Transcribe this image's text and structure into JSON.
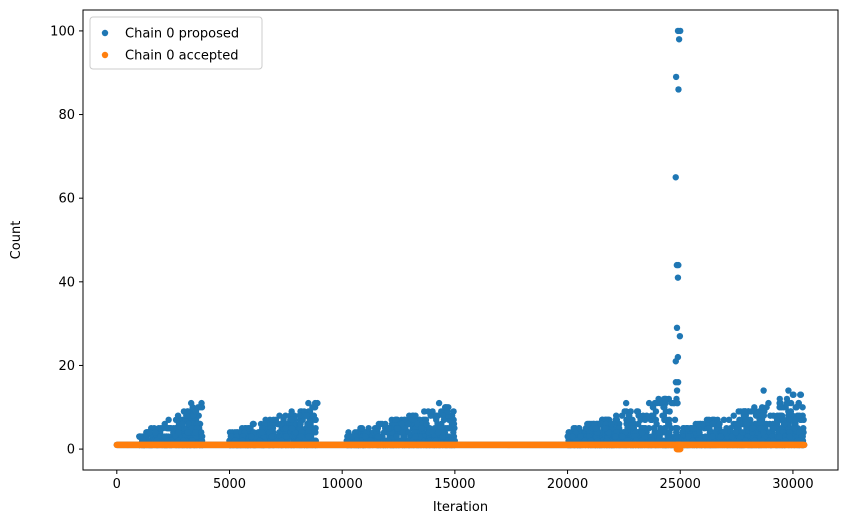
{
  "chart_data": {
    "type": "scatter",
    "title": "",
    "xlabel": "Iteration",
    "ylabel": "Count",
    "xlim": [
      -1500,
      32000
    ],
    "ylim": [
      -5,
      105
    ],
    "x_ticks": [
      0,
      5000,
      10000,
      15000,
      20000,
      25000,
      30000
    ],
    "y_ticks": [
      0,
      20,
      40,
      60,
      80,
      100
    ],
    "grid": false,
    "legend_placement": "top-left",
    "series": [
      {
        "name": "Chain 0 proposed",
        "color": "#1f77b4",
        "segments": [
          {
            "x_start": 0,
            "x_end": 1000,
            "y_min": 1,
            "y_max": 1
          },
          {
            "x_start": 1000,
            "x_end": 3800,
            "y_min": 1,
            "y_max": 11
          },
          {
            "x_start": 3800,
            "x_end": 5000,
            "y_min": 1,
            "y_max": 1
          },
          {
            "x_start": 5000,
            "x_end": 8900,
            "y_min": 1,
            "y_max": 11
          },
          {
            "x_start": 8900,
            "x_end": 10200,
            "y_min": 1,
            "y_max": 1
          },
          {
            "x_start": 10200,
            "x_end": 15000,
            "y_min": 1,
            "y_max": 11
          },
          {
            "x_start": 15000,
            "x_end": 20000,
            "y_min": 1,
            "y_max": 1
          },
          {
            "x_start": 20000,
            "x_end": 24800,
            "y_min": 1,
            "y_max": 13
          },
          {
            "x_start": 24800,
            "x_end": 25000,
            "y_min": 1,
            "y_max": 100
          },
          {
            "x_start": 25000,
            "x_end": 30500,
            "y_min": 1,
            "y_max": 14
          }
        ],
        "notable_points": [
          {
            "x": 3300,
            "y": 11
          },
          {
            "x": 8500,
            "y": 11
          },
          {
            "x": 8800,
            "y": 11
          },
          {
            "x": 14300,
            "y": 11
          },
          {
            "x": 22600,
            "y": 11
          },
          {
            "x": 28700,
            "y": 14
          },
          {
            "x": 29800,
            "y": 14
          },
          {
            "x": 24900,
            "y": 100
          },
          {
            "x": 24950,
            "y": 98
          },
          {
            "x": 25000,
            "y": 100
          }
        ]
      },
      {
        "name": "Chain 0 accepted",
        "color": "#ff7f0e",
        "segments": [
          {
            "x_start": 0,
            "x_end": 30500,
            "y_min": 1,
            "y_max": 1
          },
          {
            "x_start": 24850,
            "x_end": 25000,
            "y_min": 0,
            "y_max": 1
          }
        ]
      }
    ]
  }
}
